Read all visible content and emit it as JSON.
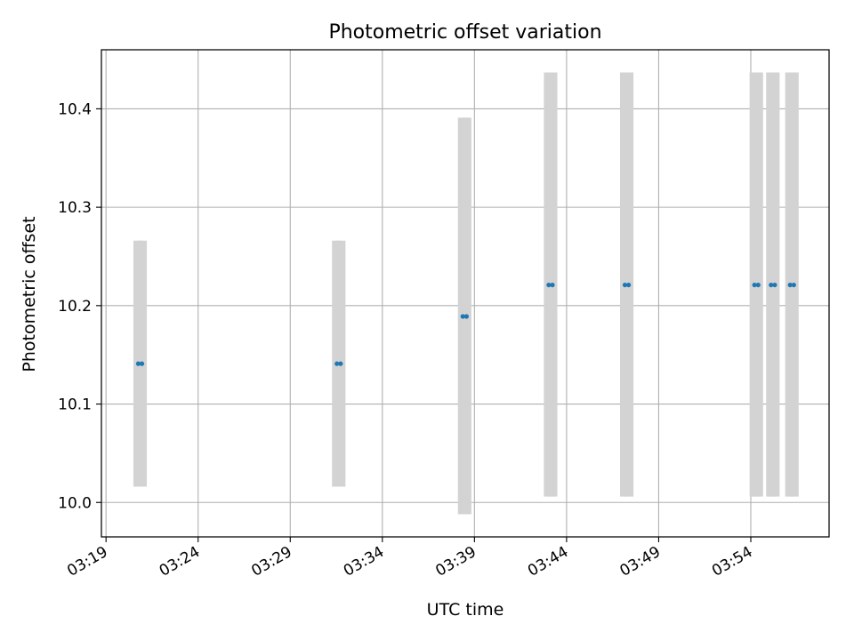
{
  "chart_data": {
    "type": "scatter",
    "title": "Photometric offset variation",
    "xlabel": "UTC time",
    "ylabel": "Photometric offset",
    "x_is_time": true,
    "xlim": [
      "03:18:45",
      "03:58:15"
    ],
    "ylim": [
      9.965,
      10.46
    ],
    "xticks": [
      "03:19",
      "03:24",
      "03:29",
      "03:34",
      "03:39",
      "03:44",
      "03:49",
      "03:54"
    ],
    "yticks": [
      10.0,
      10.1,
      10.2,
      10.3,
      10.4
    ],
    "ytick_labels": [
      "10.0",
      "10.1",
      "10.2",
      "10.3",
      "10.4"
    ],
    "grid": true,
    "series": [
      {
        "marker": "point",
        "color": "#1f77b4",
        "errorbar_color": "#d3d3d3",
        "points": [
          {
            "x": "03:20:45",
            "y": 10.141,
            "ymin": 10.016,
            "ymax": 10.266
          },
          {
            "x": "03:20:57",
            "y": 10.141,
            "ymin": 10.016,
            "ymax": 10.266
          },
          {
            "x": "03:31:32",
            "y": 10.141,
            "ymin": 10.016,
            "ymax": 10.266
          },
          {
            "x": "03:31:44",
            "y": 10.141,
            "ymin": 10.016,
            "ymax": 10.266
          },
          {
            "x": "03:38:22",
            "y": 10.189,
            "ymin": 9.988,
            "ymax": 10.391
          },
          {
            "x": "03:38:34",
            "y": 10.189,
            "ymin": 9.988,
            "ymax": 10.391
          },
          {
            "x": "03:43:02",
            "y": 10.221,
            "ymin": 10.006,
            "ymax": 10.437
          },
          {
            "x": "03:43:14",
            "y": 10.221,
            "ymin": 10.006,
            "ymax": 10.437
          },
          {
            "x": "03:47:10",
            "y": 10.221,
            "ymin": 10.006,
            "ymax": 10.437
          },
          {
            "x": "03:47:22",
            "y": 10.221,
            "ymin": 10.006,
            "ymax": 10.437
          },
          {
            "x": "03:54:12",
            "y": 10.221,
            "ymin": 10.006,
            "ymax": 10.437
          },
          {
            "x": "03:54:24",
            "y": 10.221,
            "ymin": 10.006,
            "ymax": 10.437
          },
          {
            "x": "03:55:06",
            "y": 10.221,
            "ymin": 10.006,
            "ymax": 10.437
          },
          {
            "x": "03:55:18",
            "y": 10.221,
            "ymin": 10.006,
            "ymax": 10.437
          },
          {
            "x": "03:56:08",
            "y": 10.221,
            "ymin": 10.006,
            "ymax": 10.437
          },
          {
            "x": "03:56:20",
            "y": 10.221,
            "ymin": 10.006,
            "ymax": 10.437
          }
        ]
      }
    ]
  },
  "colors": {
    "grid": "#b0b0b0",
    "axes": "#000000",
    "marker": "#1f77b4",
    "errorbar": "#d3d3d3"
  }
}
